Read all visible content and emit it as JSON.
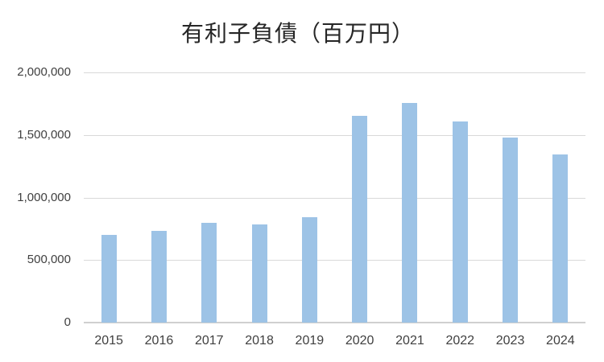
{
  "chart_data": {
    "type": "bar",
    "title": "有利子負債（百万円）",
    "categories": [
      "2015",
      "2016",
      "2017",
      "2018",
      "2019",
      "2020",
      "2021",
      "2022",
      "2023",
      "2024"
    ],
    "values": [
      700000,
      730000,
      795000,
      785000,
      840000,
      1655000,
      1755000,
      1605000,
      1480000,
      1345000
    ],
    "xlabel": "",
    "ylabel": "",
    "ylim": [
      0,
      2000000
    ],
    "ytick_interval": 500000,
    "ytick_labels": [
      "0",
      "500,000",
      "1,000,000",
      "1,500,000",
      "2,000,000"
    ],
    "grid": true,
    "legend_position": "none",
    "bar_color": "#9DC3E6",
    "gridline_color": "#D9D9D9",
    "axis_line_color": "#D0D0D0",
    "text_color": "#404040",
    "title_color": "#262626"
  }
}
